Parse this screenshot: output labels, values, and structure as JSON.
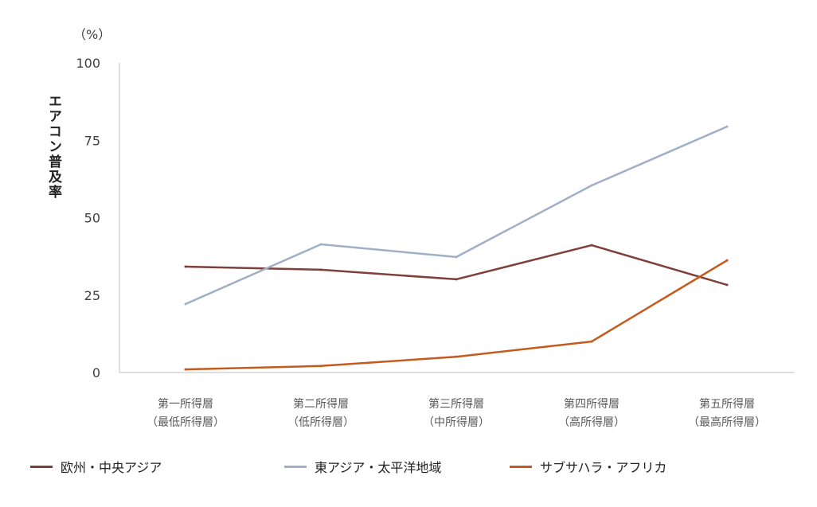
{
  "chart_data": {
    "type": "line",
    "unit_label": "（%）",
    "ylabel": "エアコン普及率",
    "xlabel": "",
    "ylim": [
      0,
      100
    ],
    "yticks": [
      0,
      25,
      50,
      75,
      100
    ],
    "grid": false,
    "legend_position": "bottom",
    "categories": [
      [
        "第一所得層",
        "（最低所得層）"
      ],
      [
        "第二所得層",
        "（低所得層）"
      ],
      [
        "第三所得層",
        "（中所得層）"
      ],
      [
        "第四所得層",
        "（高所得層）"
      ],
      [
        "第五所得層",
        "（最高所得層）"
      ]
    ],
    "series": [
      {
        "name": "欧州・中央アジア",
        "color": "#7f3f3a",
        "values": [
          34.2,
          33.2,
          30.1,
          41.1,
          28.3
        ]
      },
      {
        "name": "東アジア・太平洋地域",
        "color": "#9fb0c6",
        "values": [
          22.1,
          41.4,
          37.3,
          60.4,
          79.4
        ]
      },
      {
        "name": "サブサハラ・アフリカ",
        "color": "#c55a1e",
        "values": [
          1.0,
          2.1,
          5.1,
          10.0,
          36.2
        ]
      }
    ]
  }
}
